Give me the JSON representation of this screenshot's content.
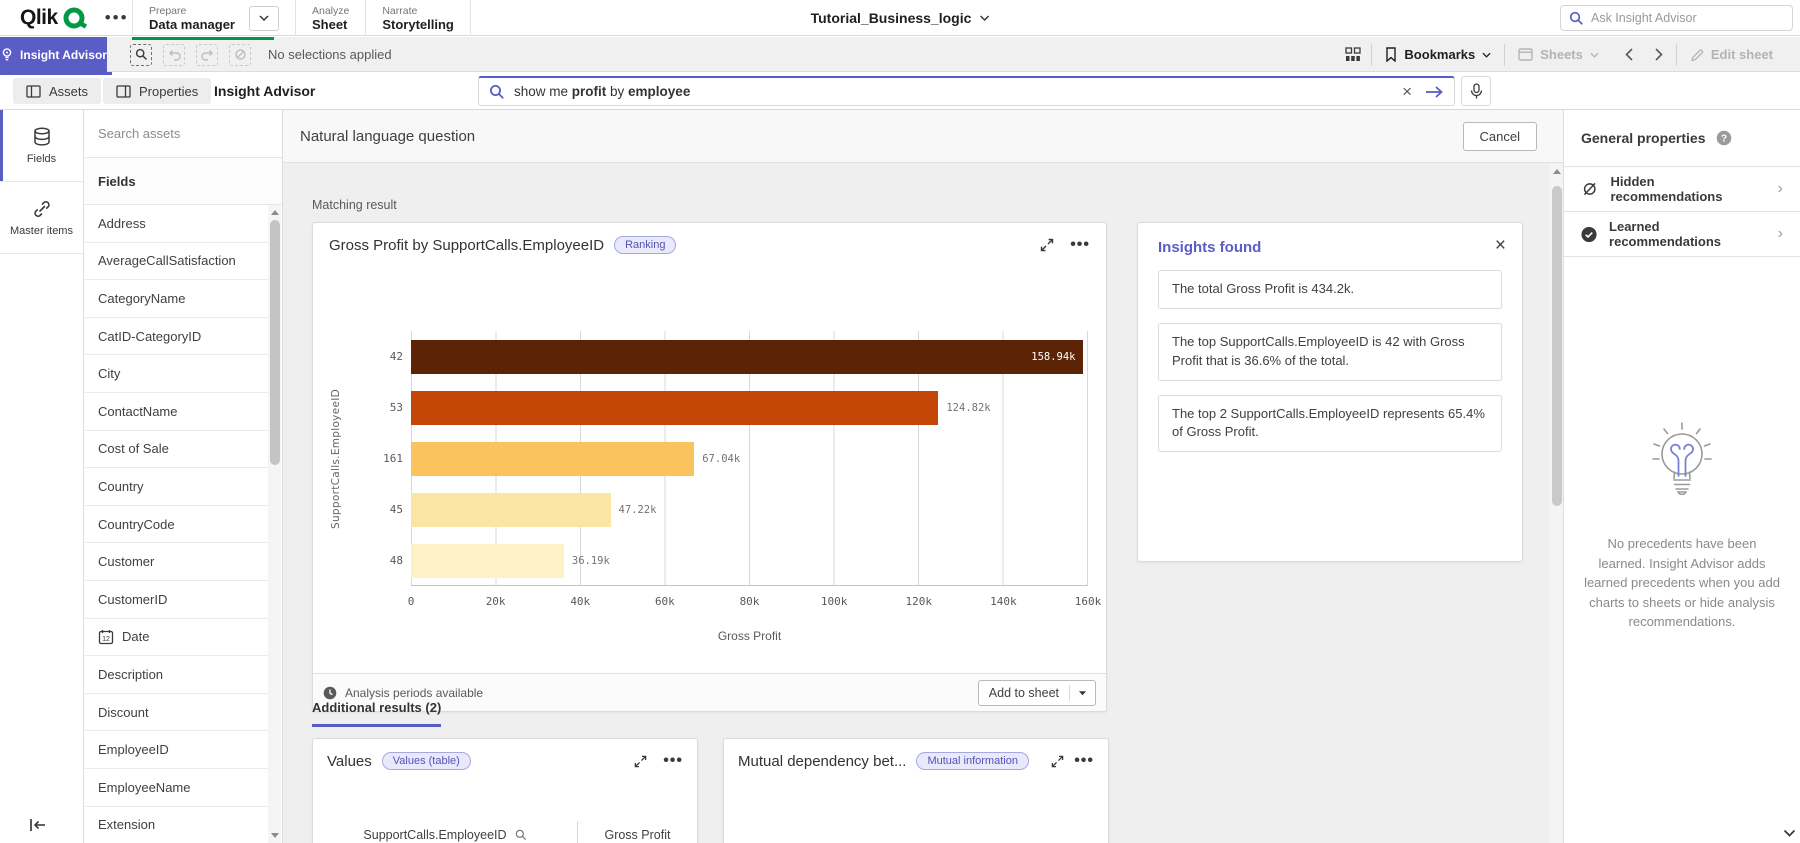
{
  "topbar": {
    "logo_text": "Qlik",
    "nav": [
      {
        "eyebrow": "Prepare",
        "label": "Data manager"
      },
      {
        "eyebrow": "Analyze",
        "label": "Sheet"
      },
      {
        "eyebrow": "Narrate",
        "label": "Storytelling"
      }
    ],
    "app_title": "Tutorial_Business_logic",
    "search_placeholder": "Ask Insight Advisor"
  },
  "toolbar": {
    "insight_advisor_label": "Insight Advisor",
    "selections_status": "No selections applied",
    "bookmarks_label": "Bookmarks",
    "sheets_label": "Sheets",
    "edit_sheet_label": "Edit sheet"
  },
  "subheader": {
    "assets_label": "Assets",
    "properties_label": "Properties",
    "title": "Insight Advisor",
    "query_parts": {
      "p0": "show me ",
      "p1": "profit",
      "p2": " by ",
      "p3": "employee"
    }
  },
  "left_rail": {
    "fields_label": "Fields",
    "master_items_label": "Master items"
  },
  "assets_panel": {
    "search_placeholder": "Search assets",
    "section_header": "Fields",
    "fields": [
      "Address",
      "AverageCallSatisfaction",
      "CategoryName",
      "CatID-CategoryID",
      "City",
      "ContactName",
      "Cost of Sale",
      "Country",
      "CountryCode",
      "Customer",
      "CustomerID",
      "Date",
      "Description",
      "Discount",
      "EmployeeID",
      "EmployeeName",
      "Extension"
    ]
  },
  "main": {
    "panel_title": "Natural language question",
    "cancel_label": "Cancel",
    "matching_result_label": "Matching result",
    "chart_card": {
      "title": "Gross Profit by SupportCalls.EmployeeID",
      "badge": "Ranking",
      "footer_note": "Analysis periods available",
      "add_to_sheet_label": "Add to sheet"
    },
    "insights": {
      "title": "Insights found",
      "items": [
        "The total Gross Profit is 434.2k.",
        "The top SupportCalls.EmployeeID is 42 with Gross Profit that is 36.6% of the total.",
        "The top 2 SupportCalls.EmployeeID represents 65.4% of Gross Profit."
      ]
    },
    "additional_tab": "Additional results (2)",
    "values_card": {
      "title": "Values",
      "badge": "Values (table)",
      "columns": [
        "SupportCalls.EmployeeID",
        "Gross Profit"
      ]
    },
    "mutual_card": {
      "title": "Mutual dependency bet...",
      "badge": "Mutual information"
    }
  },
  "properties_panel": {
    "title": "General properties",
    "rows": [
      "Hidden recommendations",
      "Learned recommendations"
    ],
    "empty_state": "No precedents have been learned. Insight Advisor adds learned precedents when you add charts to sheets or hide analysis recommendations."
  },
  "chart_data": {
    "type": "bar",
    "orientation": "horizontal",
    "title": "Gross Profit by SupportCalls.EmployeeID",
    "categories": [
      "42",
      "53",
      "161",
      "45",
      "48"
    ],
    "values": [
      158940,
      124820,
      67040,
      47220,
      36190
    ],
    "value_labels": [
      "158.94k",
      "124.82k",
      "67.04k",
      "47.22k",
      "36.19k"
    ],
    "bar_colors": [
      "#5c2306",
      "#c54708",
      "#fbc35e",
      "#fce5a4",
      "#fdf2c7"
    ],
    "xlabel": "Gross Profit",
    "ylabel": "SupportCalls.EmployeeID",
    "xlim": [
      0,
      160000
    ],
    "x_ticks": [
      "0",
      "20k",
      "40k",
      "60k",
      "80k",
      "100k",
      "120k",
      "140k",
      "160k"
    ],
    "grid": "vertical",
    "legend": false
  },
  "colors": {
    "accent": "#5a5dc6",
    "brand_green": "#009845"
  }
}
